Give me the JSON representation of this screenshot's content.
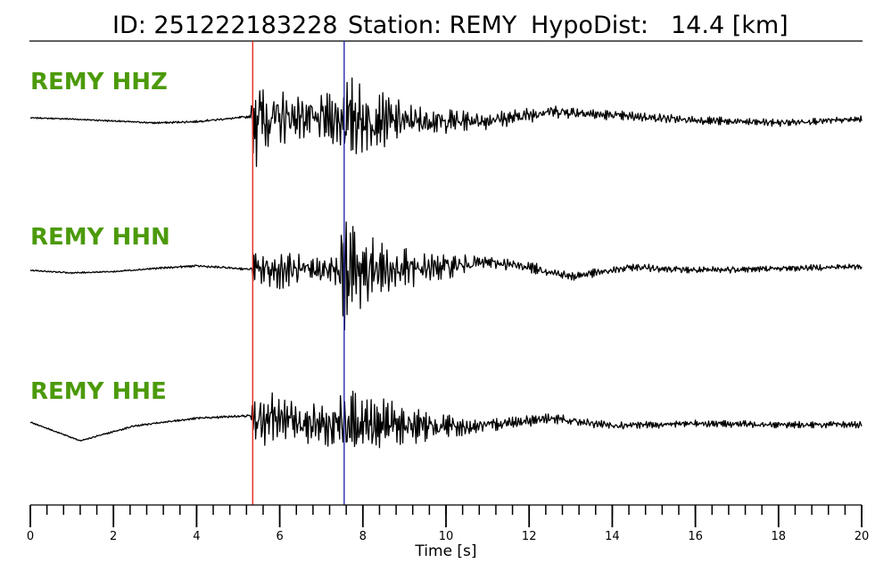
{
  "header": {
    "id_text": "ID: 251222183228",
    "station_text": "Station: REMY",
    "hypodist_label": "HypoDist:",
    "hypodist_value": "14.4 [km]"
  },
  "chart_data": {
    "type": "line",
    "title": "ID: 251222183228   Station: REMY   HypoDist:    14.4 [km]",
    "xlabel": "Time [s]",
    "xlim": [
      0,
      20
    ],
    "x_ticks": [
      0,
      2,
      4,
      6,
      8,
      10,
      12,
      14,
      16,
      18,
      20
    ],
    "minor_tick_step": 0.4,
    "grid": false,
    "label_color": "#4c9a0a",
    "picks": [
      {
        "phase": "P",
        "time": 5.35,
        "color": "#e8281e"
      },
      {
        "phase": "S",
        "time": 7.55,
        "color": "#2a2aa8"
      }
    ],
    "series": [
      {
        "name": "REMY HHZ",
        "envelope": [
          [
            0,
            0.01
          ],
          [
            5.3,
            0.02
          ],
          [
            5.4,
            1.0
          ],
          [
            5.5,
            0.6
          ],
          [
            6.2,
            0.4
          ],
          [
            7.0,
            0.35
          ],
          [
            7.4,
            0.45
          ],
          [
            7.6,
            0.75
          ],
          [
            8.0,
            0.55
          ],
          [
            9.0,
            0.3
          ],
          [
            10.5,
            0.15
          ],
          [
            14,
            0.08
          ],
          [
            20,
            0.05
          ]
        ],
        "drift": [
          [
            0,
            0
          ],
          [
            1,
            -0.02
          ],
          [
            2,
            -0.05
          ],
          [
            3,
            -0.08
          ],
          [
            4,
            -0.06
          ],
          [
            5.3,
            0.02
          ],
          [
            7,
            0
          ],
          [
            9,
            -0.05
          ],
          [
            11,
            -0.05
          ],
          [
            12.6,
            0.1
          ],
          [
            14,
            0.04
          ],
          [
            16,
            -0.04
          ],
          [
            18,
            -0.08
          ],
          [
            20,
            -0.02
          ]
        ]
      },
      {
        "name": "REMY HHN",
        "envelope": [
          [
            0,
            0.01
          ],
          [
            5.3,
            0.02
          ],
          [
            5.4,
            0.3
          ],
          [
            6.0,
            0.3
          ],
          [
            7.0,
            0.2
          ],
          [
            7.4,
            0.3
          ],
          [
            7.55,
            1.0
          ],
          [
            7.8,
            0.7
          ],
          [
            8.5,
            0.4
          ],
          [
            9.5,
            0.25
          ],
          [
            11,
            0.1
          ],
          [
            14,
            0.06
          ],
          [
            20,
            0.05
          ]
        ],
        "drift": [
          [
            0,
            0
          ],
          [
            1,
            -0.04
          ],
          [
            2,
            -0.02
          ],
          [
            3,
            0.03
          ],
          [
            4,
            0.07
          ],
          [
            5.2,
            0.02
          ],
          [
            7,
            0
          ],
          [
            9.5,
            0.03
          ],
          [
            11,
            0.13
          ],
          [
            12,
            0.05
          ],
          [
            13,
            -0.1
          ],
          [
            14.5,
            0.05
          ],
          [
            16,
            0.0
          ],
          [
            18,
            0.03
          ],
          [
            20,
            0.06
          ]
        ]
      },
      {
        "name": "REMY HHE",
        "envelope": [
          [
            0,
            0.01
          ],
          [
            5.3,
            0.02
          ],
          [
            5.4,
            0.7
          ],
          [
            5.6,
            0.5
          ],
          [
            6.2,
            0.35
          ],
          [
            7.0,
            0.3
          ],
          [
            7.4,
            0.4
          ],
          [
            7.6,
            0.6
          ],
          [
            8.2,
            0.45
          ],
          [
            9.2,
            0.3
          ],
          [
            10.5,
            0.12
          ],
          [
            14,
            0.06
          ],
          [
            20,
            0.05
          ]
        ],
        "drift": [
          [
            0,
            0.04
          ],
          [
            1.2,
            -0.25
          ],
          [
            2.5,
            -0.02
          ],
          [
            4,
            0.1
          ],
          [
            5.3,
            0.14
          ],
          [
            7,
            0
          ],
          [
            9,
            0
          ],
          [
            10.5,
            -0.04
          ],
          [
            12.5,
            0.1
          ],
          [
            14,
            -0.02
          ],
          [
            16,
            0.02
          ],
          [
            18,
            0
          ],
          [
            20,
            0.0
          ]
        ]
      }
    ]
  }
}
